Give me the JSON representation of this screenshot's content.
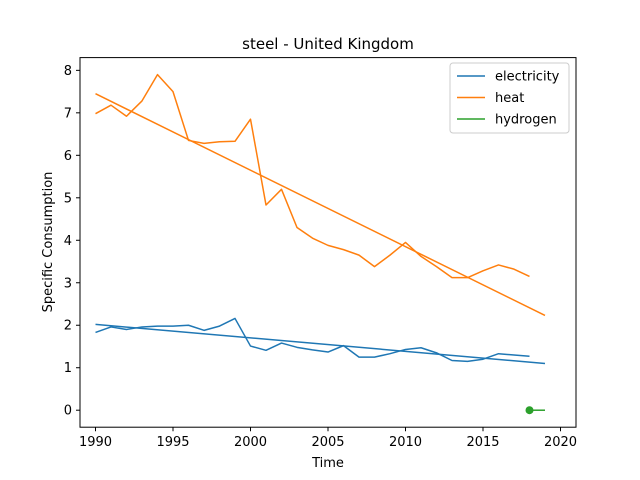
{
  "chart_data": {
    "type": "line",
    "title": "steel - United Kingdom",
    "xlabel": "Time",
    "ylabel": "Specific Consumption",
    "xlim": [
      1989,
      2021
    ],
    "ylim": [
      -0.4,
      8.3
    ],
    "xticks": [
      1990,
      1995,
      2000,
      2005,
      2010,
      2015,
      2020
    ],
    "yticks": [
      0,
      1,
      2,
      3,
      4,
      5,
      6,
      7,
      8
    ],
    "grid": false,
    "legend_position": "top-right",
    "series": [
      {
        "name": "electricity",
        "color": "#1f77b4",
        "x": [
          1990,
          1991,
          1992,
          1993,
          1994,
          1995,
          1996,
          1997,
          1998,
          1999,
          2000,
          2001,
          2002,
          2003,
          2004,
          2005,
          2006,
          2007,
          2008,
          2009,
          2010,
          2011,
          2012,
          2013,
          2014,
          2015,
          2016,
          2017,
          2018
        ],
        "y": [
          1.83,
          1.96,
          1.9,
          1.96,
          1.98,
          1.98,
          2.0,
          1.88,
          1.98,
          2.16,
          1.51,
          1.41,
          1.58,
          1.48,
          1.42,
          1.37,
          1.52,
          1.25,
          1.25,
          1.33,
          1.43,
          1.47,
          1.35,
          1.17,
          1.15,
          1.2,
          1.33,
          1.3,
          1.27
        ]
      },
      {
        "name": "electricity trend",
        "color": "#1f77b4",
        "x": [
          1990,
          2019
        ],
        "y": [
          2.02,
          1.1
        ]
      },
      {
        "name": "heat",
        "color": "#ff7f0e",
        "x": [
          1990,
          1991,
          1992,
          1993,
          1994,
          1995,
          1996,
          1997,
          1998,
          1999,
          2000,
          2001,
          2002,
          2003,
          2004,
          2005,
          2006,
          2007,
          2008,
          2009,
          2010,
          2011,
          2012,
          2013,
          2014,
          2015,
          2016,
          2017,
          2018
        ],
        "y": [
          6.98,
          7.18,
          6.92,
          7.28,
          7.9,
          7.5,
          6.35,
          6.28,
          6.32,
          6.33,
          6.85,
          4.83,
          5.2,
          4.3,
          4.05,
          3.88,
          3.78,
          3.65,
          3.38,
          3.65,
          3.95,
          3.62,
          3.38,
          3.12,
          3.12,
          3.28,
          3.42,
          3.32,
          3.15
        ]
      },
      {
        "name": "heat trend",
        "color": "#ff7f0e",
        "x": [
          1990,
          2019
        ],
        "y": [
          7.45,
          2.23
        ]
      },
      {
        "name": "hydrogen",
        "color": "#2ca02c",
        "x": [
          2018,
          2019
        ],
        "y": [
          0.0,
          0.0
        ],
        "marker_first": true
      }
    ],
    "legend": [
      "electricity",
      "heat",
      "hydrogen"
    ]
  }
}
